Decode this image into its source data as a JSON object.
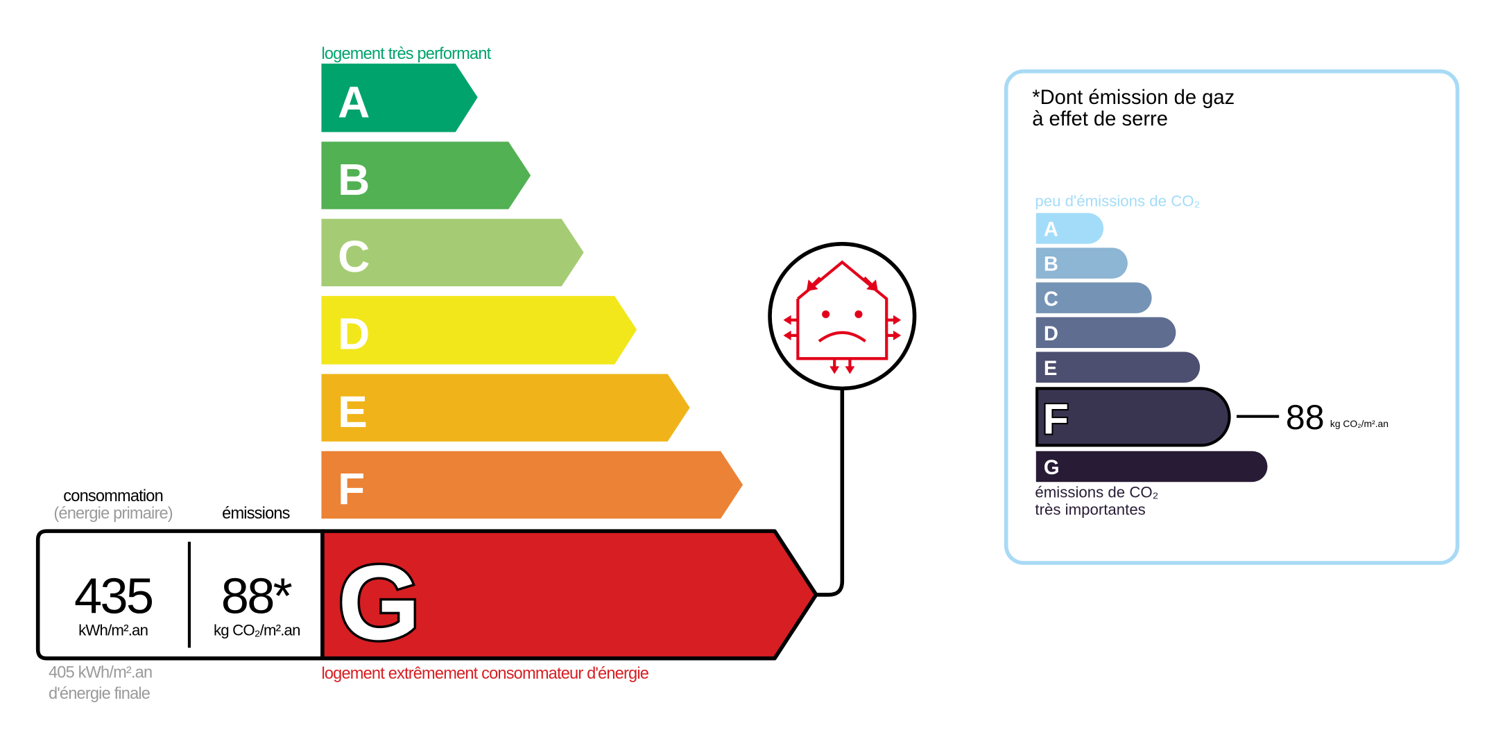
{
  "dpe": {
    "top_label": "logement très performant",
    "bottom_label": "logement extrêmement consommateur d'énergie",
    "classes": [
      {
        "letter": "A",
        "color": "#00a36c"
      },
      {
        "letter": "B",
        "color": "#52b153"
      },
      {
        "letter": "C",
        "color": "#a5cc74"
      },
      {
        "letter": "D",
        "color": "#f2e71b"
      },
      {
        "letter": "E",
        "color": "#f0b41a"
      },
      {
        "letter": "F",
        "color": "#eb8235"
      },
      {
        "letter": "G",
        "color": "#d71e22"
      }
    ],
    "current_class": "G",
    "consumption_header": "consommation",
    "consumption_subheader": "(énergie primaire)",
    "emissions_header": "émissions",
    "consumption_value": "435",
    "consumption_unit": "kWh/m².an",
    "emissions_value": "88*",
    "emissions_unit": "kg CO₂/m².an",
    "final_energy_value": "405 kWh/m².an",
    "final_energy_label": "d'énergie finale",
    "icon": "passoire-house-sad-icon"
  },
  "ges": {
    "title_line1": "*Dont émission de gaz",
    "title_line2": "à effet de serre",
    "top_label": "peu d'émissions de CO₂",
    "bottom_label_line1": "émissions de CO₂",
    "bottom_label_line2": "très importantes",
    "classes": [
      {
        "letter": "A",
        "color": "#a3dcf8"
      },
      {
        "letter": "B",
        "color": "#8db5d4"
      },
      {
        "letter": "C",
        "color": "#7593b5"
      },
      {
        "letter": "D",
        "color": "#5f6d91"
      },
      {
        "letter": "E",
        "color": "#4c4f6f"
      },
      {
        "letter": "F",
        "color": "#393551"
      },
      {
        "letter": "G",
        "color": "#281b35"
      }
    ],
    "current_class": "F",
    "value": "88",
    "unit": "kg CO₂/m².an",
    "border_color": "#a8daf5"
  }
}
